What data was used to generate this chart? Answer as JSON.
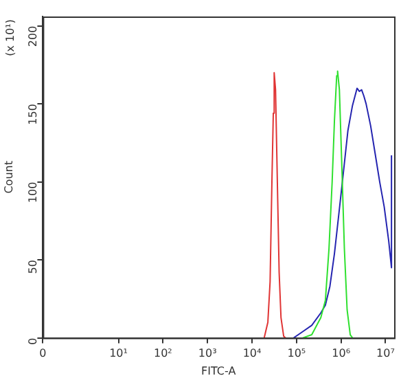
{
  "chart_data": {
    "type": "line",
    "xlabel": "FITC-A",
    "ylabel": "Count",
    "annotations": [
      "(x 10¹)"
    ],
    "log": "x",
    "xlim": [
      0.2,
      15600000
    ],
    "xticks": [
      {
        "value": 0.2,
        "label": "0"
      },
      {
        "value": 10,
        "label": "10¹"
      },
      {
        "value": 100,
        "label": "10²"
      },
      {
        "value": 1000,
        "label": "10³"
      },
      {
        "value": 10000,
        "label": "10⁴"
      },
      {
        "value": 100000,
        "label": "10⁵"
      },
      {
        "value": 1000000,
        "label": "10⁶"
      },
      {
        "value": 10000000,
        "label": "10⁷"
      }
    ],
    "ylim": [
      0,
      206
    ],
    "yticks": [
      0,
      50,
      100,
      150,
      200
    ],
    "grid": false,
    "legend": false,
    "marker": "none",
    "line_style": "solid",
    "series": [
      {
        "color": "#e03434",
        "x": [
          18800,
          22700,
          25500,
          28000,
          30100,
          31500,
          33800,
          37100,
          40700,
          44800,
          51500,
          56600
        ],
        "values": [
          0,
          10,
          36,
          100,
          144,
          170,
          159,
          100,
          42,
          13,
          1,
          0
        ]
      },
      {
        "color": "#2ee02e",
        "x": [
          138000,
          220000,
          352000,
          445000,
          536000,
          632000,
          711000,
          799000,
          837000,
          919000,
          1030000,
          1190000,
          1370000,
          1610000,
          1810000
        ],
        "values": [
          0,
          2,
          13,
          24,
          57,
          100,
          139,
          168,
          171,
          159,
          115,
          57,
          18,
          2,
          0
        ]
      },
      {
        "color": "#2424b0",
        "x": [
          86300,
          138000,
          220000,
          352000,
          445000,
          562000,
          711000,
          898000,
          1130000,
          1430000,
          1810000,
          2290000,
          2580000,
          2900000,
          3260000,
          3660000,
          4620000,
          5850000,
          7390000,
          9330000,
          11800000,
          13600000,
          13600000
        ],
        "values": [
          0,
          4,
          8,
          16,
          21,
          33,
          54,
          80,
          106,
          133,
          149,
          160,
          158,
          159,
          155,
          150,
          136,
          118,
          100,
          84,
          62,
          45,
          117
        ]
      }
    ]
  }
}
